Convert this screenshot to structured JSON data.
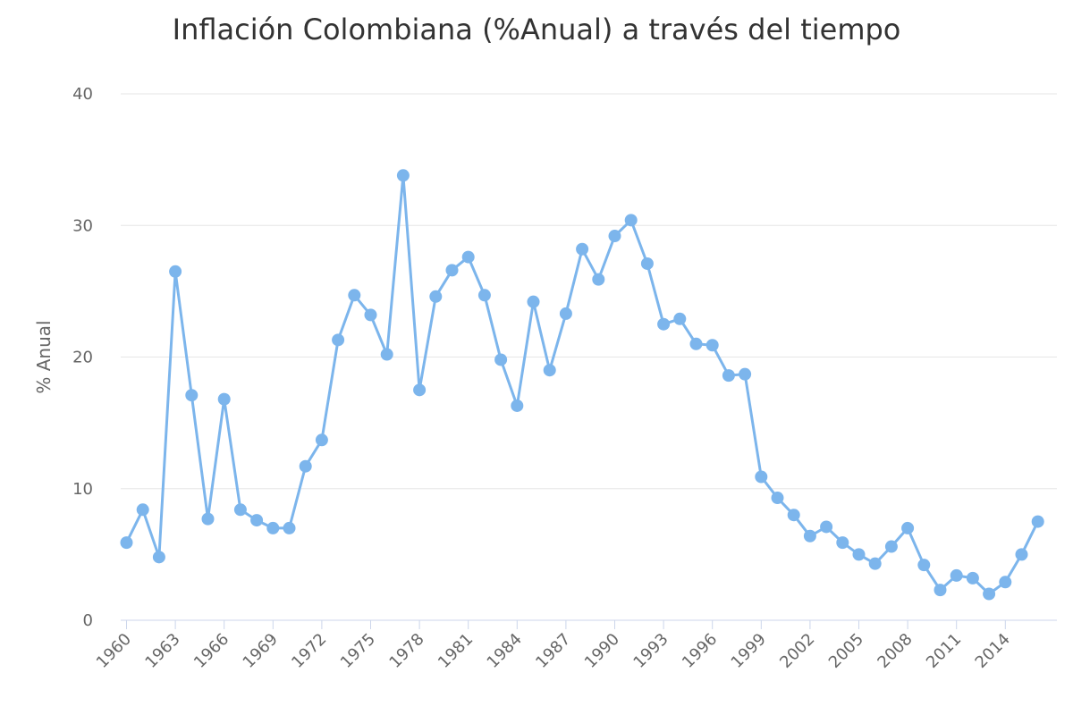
{
  "chart_data": {
    "type": "line",
    "title": "Inflación Colombiana (%Anual) a través del tiempo",
    "xlabel": "",
    "ylabel": "% Anual",
    "ylim": [
      0,
      40
    ],
    "yticks": [
      0,
      10,
      20,
      30,
      40
    ],
    "xticks": [
      1960,
      1963,
      1966,
      1969,
      1972,
      1975,
      1978,
      1981,
      1984,
      1987,
      1990,
      1993,
      1996,
      1999,
      2002,
      2005,
      2008,
      2011,
      2014
    ],
    "grid": true,
    "series_color": "#7cb5ec",
    "series": [
      {
        "x": [
          1960,
          1961,
          1962,
          1963,
          1964,
          1965,
          1966,
          1967,
          1968,
          1969,
          1970,
          1971,
          1972,
          1973,
          1974,
          1975,
          1976,
          1977,
          1978,
          1979,
          1980,
          1981,
          1982,
          1983,
          1984,
          1985,
          1986,
          1987,
          1988,
          1989,
          1990,
          1991,
          1992,
          1993,
          1994,
          1995,
          1996,
          1997,
          1998,
          1999,
          2000,
          2001,
          2002,
          2003,
          2004,
          2005,
          2006,
          2007,
          2008,
          2009,
          2010,
          2011,
          2012,
          2013,
          2014,
          2015,
          2016
        ],
        "values": [
          5.9,
          8.4,
          4.8,
          26.5,
          17.1,
          7.7,
          16.8,
          8.4,
          7.6,
          7.0,
          7.0,
          11.7,
          13.7,
          21.3,
          24.7,
          23.2,
          20.2,
          33.8,
          17.5,
          24.6,
          26.6,
          27.6,
          24.7,
          19.8,
          16.3,
          24.2,
          19.0,
          23.3,
          28.2,
          25.9,
          29.2,
          30.4,
          27.1,
          22.5,
          22.9,
          21.0,
          20.9,
          18.6,
          18.7,
          10.9,
          9.3,
          8.0,
          6.4,
          7.1,
          5.9,
          5.0,
          4.3,
          5.6,
          7.0,
          4.2,
          2.3,
          3.4,
          3.2,
          2.0,
          2.9,
          5.0,
          7.5
        ]
      }
    ]
  }
}
